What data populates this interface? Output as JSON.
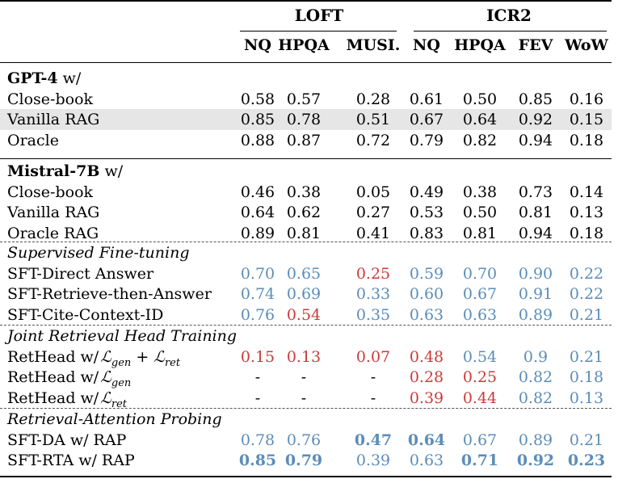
{
  "header": {
    "groups": [
      {
        "name": "LOFT",
        "center": 395
      },
      {
        "name": "ICR2",
        "center": 630
      }
    ],
    "columns": [
      "NQ",
      "HPQA",
      "MUSI.",
      "NQ",
      "HPQA",
      "FEV",
      "WoW"
    ]
  },
  "sections": [
    {
      "title_bold": "GPT-4",
      "title_rest": " w/",
      "italic": false,
      "rows": [
        {
          "label": "Close-book",
          "cells": [
            {
              "v": "0.58",
              "c": "black"
            },
            {
              "v": "0.57",
              "c": "black"
            },
            {
              "v": "0.28",
              "c": "black"
            },
            {
              "v": "0.61",
              "c": "black"
            },
            {
              "v": "0.50",
              "c": "black"
            },
            {
              "v": "0.85",
              "c": "black"
            },
            {
              "v": "0.16",
              "c": "black"
            }
          ]
        },
        {
          "label": "Vanilla RAG",
          "shaded": true,
          "cells": [
            {
              "v": "0.85",
              "c": "black"
            },
            {
              "v": "0.78",
              "c": "black"
            },
            {
              "v": "0.51",
              "c": "black"
            },
            {
              "v": "0.67",
              "c": "black"
            },
            {
              "v": "0.64",
              "c": "black"
            },
            {
              "v": "0.92",
              "c": "black"
            },
            {
              "v": "0.15",
              "c": "black"
            }
          ]
        },
        {
          "label": "Oracle",
          "cells": [
            {
              "v": "0.88",
              "c": "black"
            },
            {
              "v": "0.87",
              "c": "black"
            },
            {
              "v": "0.72",
              "c": "black"
            },
            {
              "v": "0.79",
              "c": "black"
            },
            {
              "v": "0.82",
              "c": "black"
            },
            {
              "v": "0.94",
              "c": "black"
            },
            {
              "v": "0.18",
              "c": "black"
            }
          ]
        }
      ]
    },
    {
      "title_bold": "Mistral-7B",
      "title_rest": " w/",
      "italic": false,
      "rows": [
        {
          "label": "Close-book",
          "cells": [
            {
              "v": "0.46",
              "c": "black"
            },
            {
              "v": "0.38",
              "c": "black"
            },
            {
              "v": "0.05",
              "c": "black"
            },
            {
              "v": "0.49",
              "c": "black"
            },
            {
              "v": "0.38",
              "c": "black"
            },
            {
              "v": "0.73",
              "c": "black"
            },
            {
              "v": "0.14",
              "c": "black"
            }
          ]
        },
        {
          "label": "Vanilla RAG",
          "cells": [
            {
              "v": "0.64",
              "c": "black"
            },
            {
              "v": "0.62",
              "c": "black"
            },
            {
              "v": "0.27",
              "c": "black"
            },
            {
              "v": "0.53",
              "c": "black"
            },
            {
              "v": "0.50",
              "c": "black"
            },
            {
              "v": "0.81",
              "c": "black"
            },
            {
              "v": "0.13",
              "c": "black"
            }
          ]
        },
        {
          "label": "Oracle RAG",
          "cells": [
            {
              "v": "0.89",
              "c": "black"
            },
            {
              "v": "0.81",
              "c": "black"
            },
            {
              "v": "0.41",
              "c": "black"
            },
            {
              "v": "0.83",
              "c": "black"
            },
            {
              "v": "0.81",
              "c": "black"
            },
            {
              "v": "0.94",
              "c": "black"
            },
            {
              "v": "0.18",
              "c": "black"
            }
          ]
        }
      ]
    },
    {
      "title_bold": "",
      "title_rest": "Supervised Fine-tuning",
      "italic": true,
      "rows": [
        {
          "label": "SFT-Direct Answer",
          "cells": [
            {
              "v": "0.70",
              "c": "blue"
            },
            {
              "v": "0.65",
              "c": "blue"
            },
            {
              "v": "0.25",
              "c": "red"
            },
            {
              "v": "0.59",
              "c": "blue"
            },
            {
              "v": "0.70",
              "c": "blue"
            },
            {
              "v": "0.90",
              "c": "blue"
            },
            {
              "v": "0.22",
              "c": "blue"
            }
          ]
        },
        {
          "label": "SFT-Retrieve-then-Answer",
          "cells": [
            {
              "v": "0.74",
              "c": "blue"
            },
            {
              "v": "0.69",
              "c": "blue"
            },
            {
              "v": "0.33",
              "c": "blue"
            },
            {
              "v": "0.60",
              "c": "blue"
            },
            {
              "v": "0.67",
              "c": "blue"
            },
            {
              "v": "0.91",
              "c": "blue"
            },
            {
              "v": "0.22",
              "c": "blue"
            }
          ]
        },
        {
          "label": "SFT-Cite-Context-ID",
          "cells": [
            {
              "v": "0.76",
              "c": "blue"
            },
            {
              "v": "0.54",
              "c": "red"
            },
            {
              "v": "0.35",
              "c": "blue"
            },
            {
              "v": "0.63",
              "c": "blue"
            },
            {
              "v": "0.63",
              "c": "blue"
            },
            {
              "v": "0.89",
              "c": "blue"
            },
            {
              "v": "0.21",
              "c": "blue"
            }
          ]
        }
      ]
    },
    {
      "title_bold": "",
      "title_rest": "Joint Retrieval Head Training",
      "italic": true,
      "rows": [
        {
          "label": "RetHead w/",
          "math": "ℒgen + ℒret",
          "math_parts": [
            [
              "ℒ",
              "gen"
            ],
            [
              "+",
              ""
            ],
            [
              "ℒ",
              "ret"
            ]
          ],
          "cells": [
            {
              "v": "0.15",
              "c": "red"
            },
            {
              "v": "0.13",
              "c": "red"
            },
            {
              "v": "0.07",
              "c": "red"
            },
            {
              "v": "0.48",
              "c": "red"
            },
            {
              "v": "0.54",
              "c": "blue"
            },
            {
              "v": "0.9",
              "c": "blue"
            },
            {
              "v": "0.21",
              "c": "blue"
            }
          ]
        },
        {
          "label": "RetHead w/",
          "math": "ℒgen",
          "math_parts": [
            [
              "ℒ",
              "gen"
            ]
          ],
          "cells": [
            {
              "v": "-",
              "c": "black"
            },
            {
              "v": "-",
              "c": "black"
            },
            {
              "v": "-",
              "c": "black"
            },
            {
              "v": "0.28",
              "c": "red"
            },
            {
              "v": "0.25",
              "c": "red"
            },
            {
              "v": "0.82",
              "c": "blue"
            },
            {
              "v": "0.18",
              "c": "blue"
            }
          ]
        },
        {
          "label": "RetHead w/",
          "math": "ℒret",
          "math_parts": [
            [
              "ℒ",
              "ret"
            ]
          ],
          "cells": [
            {
              "v": "-",
              "c": "black"
            },
            {
              "v": "-",
              "c": "black"
            },
            {
              "v": "-",
              "c": "black"
            },
            {
              "v": "0.39",
              "c": "red"
            },
            {
              "v": "0.44",
              "c": "red"
            },
            {
              "v": "0.82",
              "c": "blue"
            },
            {
              "v": "0.13",
              "c": "blue"
            }
          ]
        }
      ]
    },
    {
      "title_bold": "",
      "title_rest": "Retrieval-Attention Probing",
      "italic": true,
      "rows": [
        {
          "label": "SFT-DA w/ RAP",
          "cells": [
            {
              "v": "0.78",
              "c": "blue"
            },
            {
              "v": "0.76",
              "c": "blue"
            },
            {
              "v": "0.47",
              "c": "blue",
              "b": true
            },
            {
              "v": "0.64",
              "c": "blue",
              "b": true
            },
            {
              "v": "0.67",
              "c": "blue"
            },
            {
              "v": "0.89",
              "c": "blue"
            },
            {
              "v": "0.21",
              "c": "blue"
            }
          ]
        },
        {
          "label": "SFT-RTA w/ RAP",
          "cells": [
            {
              "v": "0.85",
              "c": "blue",
              "b": true
            },
            {
              "v": "0.79",
              "c": "blue",
              "b": true
            },
            {
              "v": "0.39",
              "c": "blue"
            },
            {
              "v": "0.63",
              "c": "blue"
            },
            {
              "v": "0.71",
              "c": "blue",
              "b": true
            },
            {
              "v": "0.92",
              "c": "blue",
              "b": true
            },
            {
              "v": "0.23",
              "c": "blue",
              "b": true
            }
          ]
        }
      ]
    }
  ]
}
